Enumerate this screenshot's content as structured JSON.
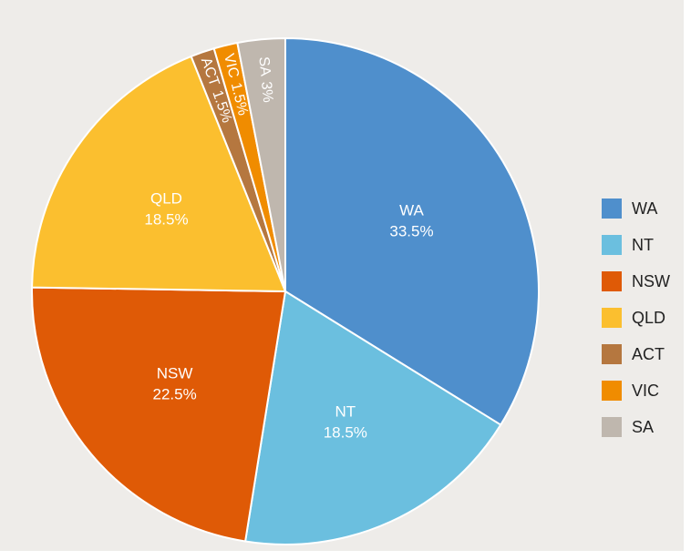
{
  "chart_data": {
    "type": "pie",
    "categories": [
      "WA",
      "NT",
      "NSW",
      "QLD",
      "ACT",
      "VIC",
      "SA"
    ],
    "values": [
      33.5,
      18.5,
      22.5,
      18.5,
      1.5,
      1.5,
      3
    ],
    "value_labels": [
      "33.5%",
      "18.5%",
      "22.5%",
      "18.5%",
      "1.5%",
      "1.5%",
      "3%"
    ],
    "colors": [
      "#4f8fcc",
      "#6bbfdf",
      "#df5a06",
      "#fbbf2f",
      "#b5773f",
      "#f08c00",
      "#bfb7ae"
    ],
    "legend": "right"
  }
}
